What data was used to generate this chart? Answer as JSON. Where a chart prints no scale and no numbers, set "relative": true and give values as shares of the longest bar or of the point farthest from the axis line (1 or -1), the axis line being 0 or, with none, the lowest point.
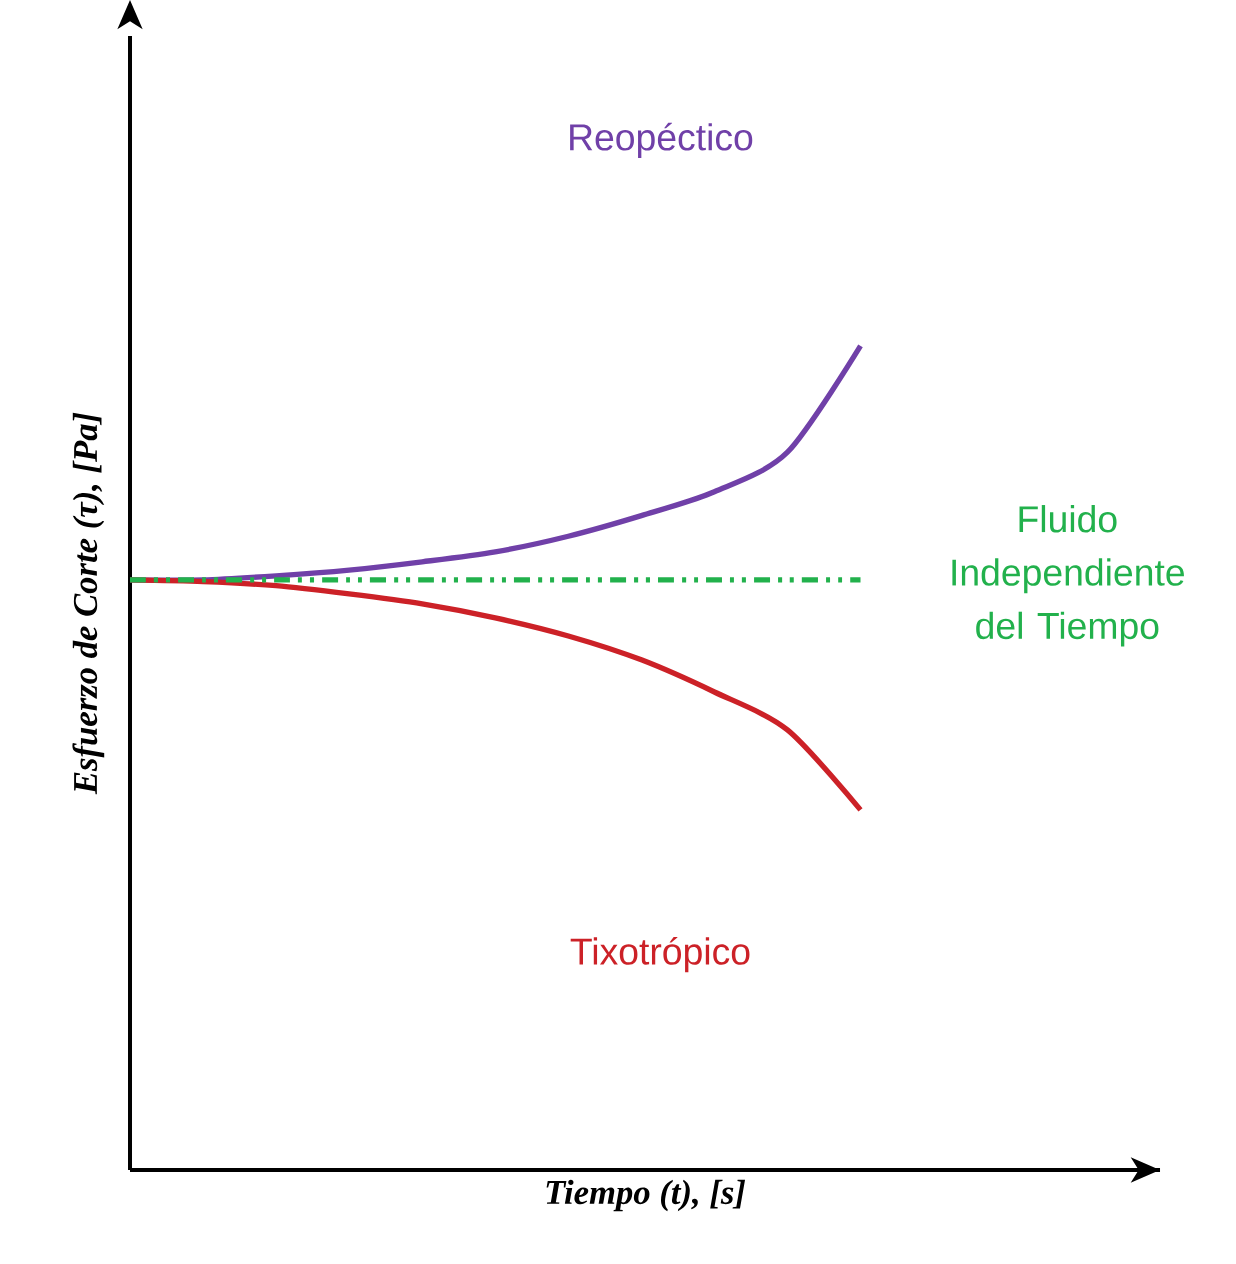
{
  "chart_data": {
    "type": "line",
    "relative": true,
    "xlabel": "Tiempo (t), [s]",
    "ylabel": "Esfuerzo de Corte (τ), [Pa]",
    "categories": [
      null,
      null,
      null,
      null,
      null,
      null,
      null,
      null,
      null,
      null,
      null
    ],
    "series": [
      {
        "name": "Reopéctico",
        "color": "#7040a8",
        "line_style": "solid",
        "values": [
          0.716,
          0.716,
          0.721,
          0.728,
          0.738,
          0.75,
          0.769,
          0.794,
          0.823,
          0.871,
          1
        ]
      },
      {
        "name": "Fluido Independiente del Tiempo",
        "color": "#22b14c",
        "line_style": "dashdot",
        "values": [
          0.716,
          0.716,
          0.716,
          0.716,
          0.716,
          0.716,
          0.716,
          0.716,
          0.716,
          0.716,
          0.716
        ]
      },
      {
        "name": "Tixotrópico",
        "color": "#cc2127",
        "line_style": "solid",
        "values": [
          0.716,
          0.714,
          0.709,
          0.699,
          0.687,
          0.67,
          0.648,
          0.619,
          0.58,
          0.534,
          0.437
        ]
      }
    ]
  }
}
